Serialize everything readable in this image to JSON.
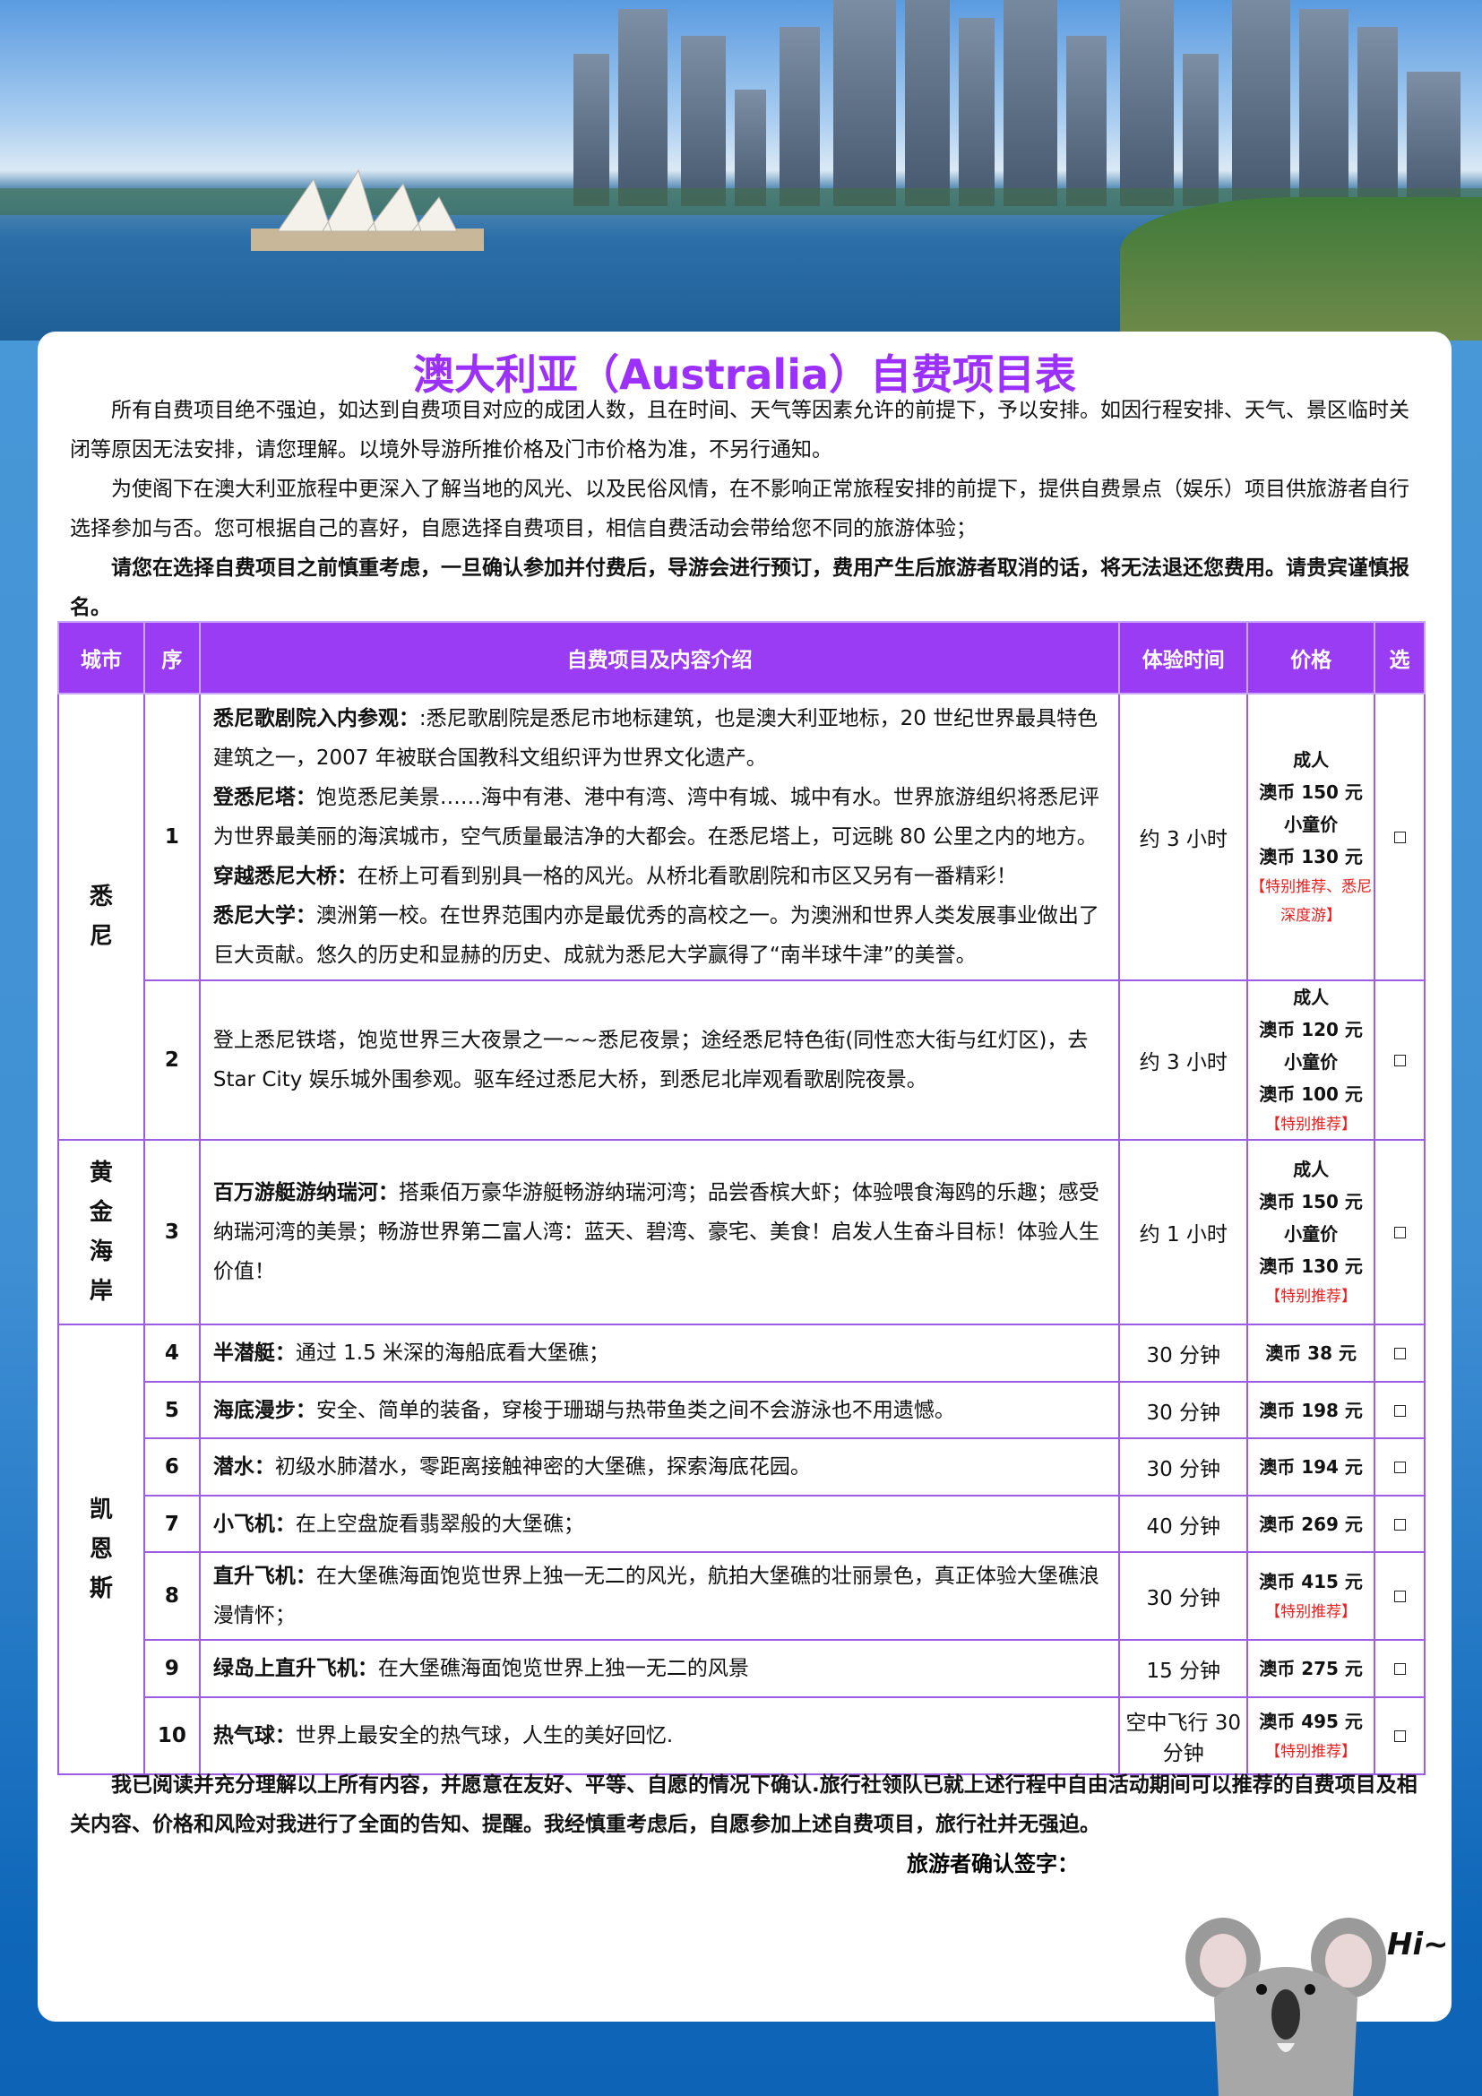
{
  "title": "澳大利亚（Australia）自费项目表",
  "intro": [
    "所有自费项目绝不强迫，如达到自费项目对应的成团人数，且在时间、天气等因素允许的前提下，予以安排。如因行程安排、天气、景区临时关闭等原因无法安排，请您理解。以境外导游所推价格及门市价格为准，不另行通知。",
    "为使阁下在澳大利亚旅程中更深入了解当地的风光、以及民俗风情，在不影响正常旅程安排的前提下，提供自费景点（娱乐）项目供旅游者自行选择参加与否。您可根据自己的喜好，自愿选择自费项目，相信自费活动会带给您不同的旅游体验；",
    "请您在选择自费项目之前慎重考虑，一旦确认参加并付费后，导游会进行预订，费用产生后旅游者取消的话，将无法退还您费用。请贵宾谨慎报名。"
  ],
  "table": {
    "headers": [
      "城市",
      "序",
      "自费项目及内容介绍",
      "体验时间",
      "价格",
      "选"
    ],
    "cities": [
      "悉尼",
      "黄金海岸",
      "凯恩斯"
    ],
    "rows": [
      {
        "seq": "1",
        "items": [
          [
            "悉尼歌剧院入内参观：",
            ":悉尼歌剧院是悉尼市地标建筑，也是澳大利亚地标，20 世纪世界最具特色建筑之一，2007 年被联合国教科文组织评为世界文化遗产。"
          ],
          [
            "登悉尼塔：",
            "饱览悉尼美景……海中有港、港中有湾、湾中有城、城中有水。世界旅游组织将悉尼评为世界最美丽的海滨城市，空气质量最洁净的大都会。在悉尼塔上，可远眺 80 公里之内的地方。"
          ],
          [
            "穿越悉尼大桥：",
            "在桥上可看到别具一格的风光。从桥北看歌剧院和市区又另有一番精彩！"
          ],
          [
            "悉尼大学：",
            "澳洲第一校。在世界范围内亦是最优秀的高校之一。为澳洲和世界人类发展事业做出了巨大贡献。悠久的历史和显赫的历史、成就为悉尼大学赢得了“南半球牛津”的美誉。"
          ]
        ],
        "time": "约 3 小时",
        "price": [
          "成人",
          "澳币 150 元",
          "小童价",
          "澳币 130 元"
        ],
        "note": "【特别推荐、悉尼深度游】"
      },
      {
        "seq": "2",
        "items": [
          [
            "",
            "登上悉尼铁塔，饱览世界三大夜景之一~~悉尼夜景；途经悉尼特色街(同性恋大街与红灯区)，去 Star City 娱乐城外围参观。驱车经过悉尼大桥，到悉尼北岸观看歌剧院夜景。"
          ]
        ],
        "time": "约 3 小时",
        "price": [
          "成人",
          "澳币 120 元",
          "小童价",
          "澳币 100 元"
        ],
        "note": "【特别推荐】"
      },
      {
        "seq": "3",
        "items": [
          [
            "百万游艇游纳瑞河：",
            "搭乘佰万豪华游艇畅游纳瑞河湾；品尝香槟大虾；体验喂食海鸥的乐趣；感受纳瑞河湾的美景；畅游世界第二富人湾：蓝天、碧湾、豪宅、美食！启发人生奋斗目标！体验人生价值！"
          ]
        ],
        "time": "约 1 小时",
        "price": [
          "成人",
          "澳币 150 元",
          "小童价",
          "澳币 130 元"
        ],
        "note": "【特别推荐】"
      },
      {
        "seq": "4",
        "items": [
          [
            "半潜艇：",
            "通过 1.5 米深的海船底看大堡礁；"
          ]
        ],
        "time": "30 分钟",
        "price": [
          "澳币 38 元"
        ],
        "note": ""
      },
      {
        "seq": "5",
        "items": [
          [
            "海底漫步：",
            "安全、简单的装备，穿梭于珊瑚与热带鱼类之间不会游泳也不用遗憾。"
          ]
        ],
        "time": "30 分钟",
        "price": [
          "澳币 198 元"
        ],
        "note": ""
      },
      {
        "seq": "6",
        "items": [
          [
            "潜水：",
            "初级水肺潜水，零距离接触神密的大堡礁，探索海底花园。"
          ]
        ],
        "time": "30 分钟",
        "price": [
          "澳币 194 元"
        ],
        "note": ""
      },
      {
        "seq": "7",
        "items": [
          [
            "小飞机：",
            "在上空盘旋看翡翠般的大堡礁；"
          ]
        ],
        "time": "40 分钟",
        "price": [
          "澳币 269 元"
        ],
        "note": ""
      },
      {
        "seq": "8",
        "items": [
          [
            "直升飞机：",
            "在大堡礁海面饱览世界上独一无二的风光，航拍大堡礁的壮丽景色，真正体验大堡礁浪漫情怀；"
          ]
        ],
        "time": "30 分钟",
        "price": [
          "澳币 415 元"
        ],
        "note": "【特别推荐】"
      },
      {
        "seq": "9",
        "items": [
          [
            "绿岛上直升飞机：",
            "在大堡礁海面饱览世界上独一无二的风景"
          ]
        ],
        "time": "15 分钟",
        "price": [
          "澳币 275 元"
        ],
        "note": ""
      },
      {
        "seq": "10",
        "items": [
          [
            "热气球：",
            "世界上最安全的热气球，人生的美好回忆."
          ]
        ],
        "time": "空中飞行 30 分钟",
        "price": [
          "澳币 495 元"
        ],
        "note": "【特别推荐】"
      }
    ]
  },
  "confirm": "我已阅读并充分理解以上所有内容，并愿意在友好、平等、自愿的情况下确认.旅行社领队已就上述行程中自由活动期间可以推荐的自费项目及相关内容、价格和风险对我进行了全面的告知、提醒。我经慎重考虑后，自愿参加上述自费项目，旅行社并无强迫。",
  "signature_label": "旅游者确认签字：",
  "greeting": "Hi~",
  "colors": {
    "title": "#9b30ff",
    "header_bg": "#9b3cf5",
    "border": "#9b5de5",
    "note": "#e52020"
  }
}
